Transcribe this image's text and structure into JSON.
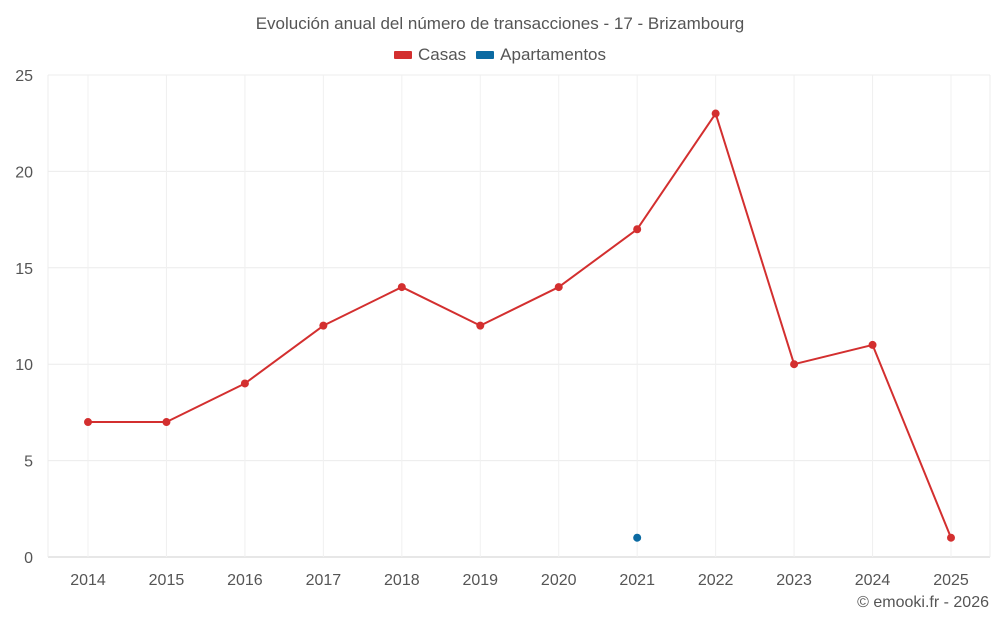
{
  "chart_data": {
    "type": "line",
    "title": "Evolución anual del número de transacciones - 17 - Brizambourg",
    "categories": [
      "2014",
      "2015",
      "2016",
      "2017",
      "2018",
      "2019",
      "2020",
      "2021",
      "2022",
      "2023",
      "2024",
      "2025"
    ],
    "series": [
      {
        "name": "Casas",
        "color": "#d32f2f",
        "values": [
          7,
          7,
          9,
          12,
          14,
          12,
          14,
          17,
          23,
          10,
          11,
          1
        ]
      },
      {
        "name": "Apartamentos",
        "color": "#0b6aa2",
        "values": [
          null,
          null,
          null,
          null,
          null,
          null,
          null,
          1,
          null,
          null,
          null,
          null
        ]
      }
    ],
    "ylim": [
      0,
      25
    ],
    "yticks": [
      0,
      5,
      10,
      15,
      20,
      25
    ],
    "grid": true,
    "legend_position": "top-center"
  },
  "footer": {
    "copyright": "© emooki.fr - 2026"
  }
}
